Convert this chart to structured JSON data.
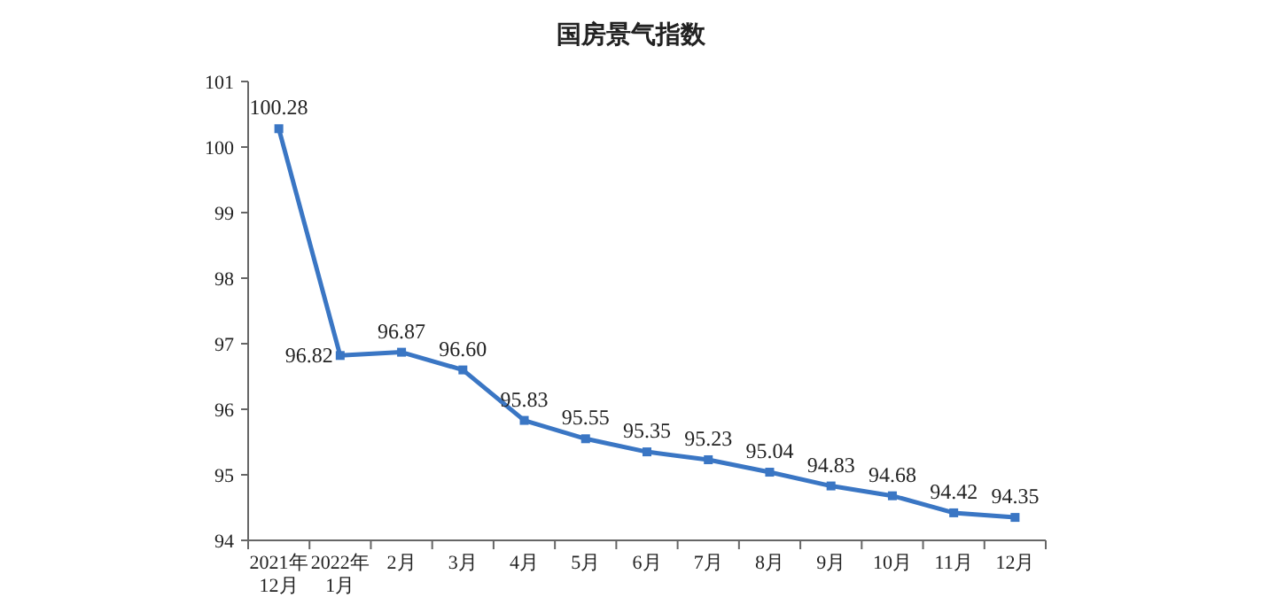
{
  "chart_data": {
    "type": "line",
    "title": "国房景气指数",
    "categories": [
      "2021年\n12月",
      "2022年\n1月",
      "2月",
      "3月",
      "4月",
      "5月",
      "6月",
      "7月",
      "8月",
      "9月",
      "10月",
      "11月",
      "12月"
    ],
    "series": [
      {
        "color": "#3a76c4",
        "values": [
          100.28,
          96.82,
          96.87,
          96.6,
          95.83,
          95.55,
          95.35,
          95.23,
          95.04,
          94.83,
          94.68,
          94.42,
          94.35
        ]
      }
    ],
    "ylim": [
      94,
      101
    ],
    "yticks": [
      94,
      95,
      96,
      97,
      98,
      99,
      100,
      101
    ],
    "value_labels": [
      "100.28",
      "96.82",
      "96.87",
      "96.60",
      "95.83",
      "95.55",
      "95.35",
      "95.23",
      "95.04",
      "94.83",
      "94.68",
      "94.42",
      "94.35"
    ],
    "marker": "square",
    "line_style": "solid",
    "grid": false
  }
}
